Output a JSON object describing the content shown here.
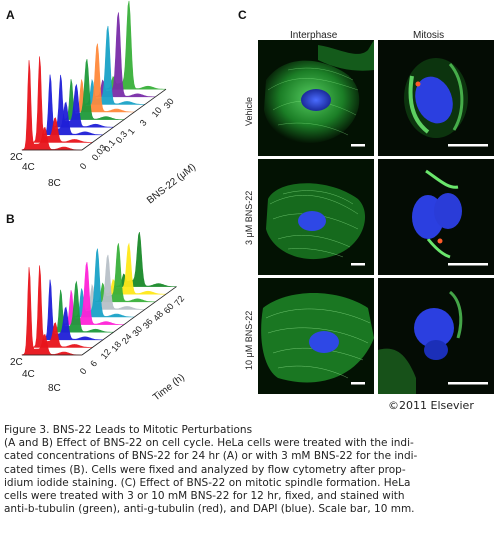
{
  "panels": {
    "a_label": "A",
    "b_label": "B",
    "c_label": "C"
  },
  "flow_a": {
    "ploidy_labels": [
      "2C",
      "4C",
      "8C"
    ],
    "depth_ticks": [
      "0",
      "0.03",
      "0.1",
      "0.3",
      "1",
      "3",
      "10",
      "30"
    ],
    "depth_axis_title": "BNS-22 (μM)",
    "trace_colors": [
      "#e8141b",
      "#e8141b",
      "#1f1fd8",
      "#1f1fd8",
      "#1f9a3a",
      "#ff8a3c",
      "#1aa3c8",
      "#7a2da8",
      "#39b03a"
    ]
  },
  "flow_b": {
    "ploidy_labels": [
      "2C",
      "4C",
      "8C"
    ],
    "depth_ticks": [
      "0",
      "6",
      "12",
      "18",
      "24",
      "30",
      "36",
      "48",
      "60",
      "72"
    ],
    "depth_axis_title": "Time (h)",
    "trace_colors": [
      "#e8141b",
      "#e8141b",
      "#1f1fd8",
      "#1f9a3a",
      "#ff22d8",
      "#1aa3c8",
      "#b8c0c8",
      "#39b03a",
      "#ffe81a",
      "#1a8a2a"
    ]
  },
  "micrographs": {
    "columns": [
      "Interphase",
      "Mitosis"
    ],
    "rows": [
      "Vehicle",
      "3 μM BNS-22",
      "10 μM BNS-22"
    ]
  },
  "copyright": "©2011 Elsevier",
  "caption": {
    "title": "Figure 3. BNS-22 Leads to Mitotic Perturbations",
    "lines": [
      "(A and B) Effect of BNS-22 on cell cycle. HeLa cells were treated with the indi-",
      "cated concentrations of BNS-22 for 24 hr (A) or with 3 mM BNS-22 for the indi-",
      "cated times (B). Cells were fixed and analyzed by flow cytometry after prop-",
      "idium iodide staining.  (C) Effect of BNS-22 on mitotic spindle formation. HeLa",
      "cells were treated with 3 or 10 mM BNS-22 for 12 hr, fixed, and stained with",
      "anti-b-tubulin (green), anti-g-tubulin (red), and DAPI (blue). Scale bar, 10 mm."
    ]
  }
}
